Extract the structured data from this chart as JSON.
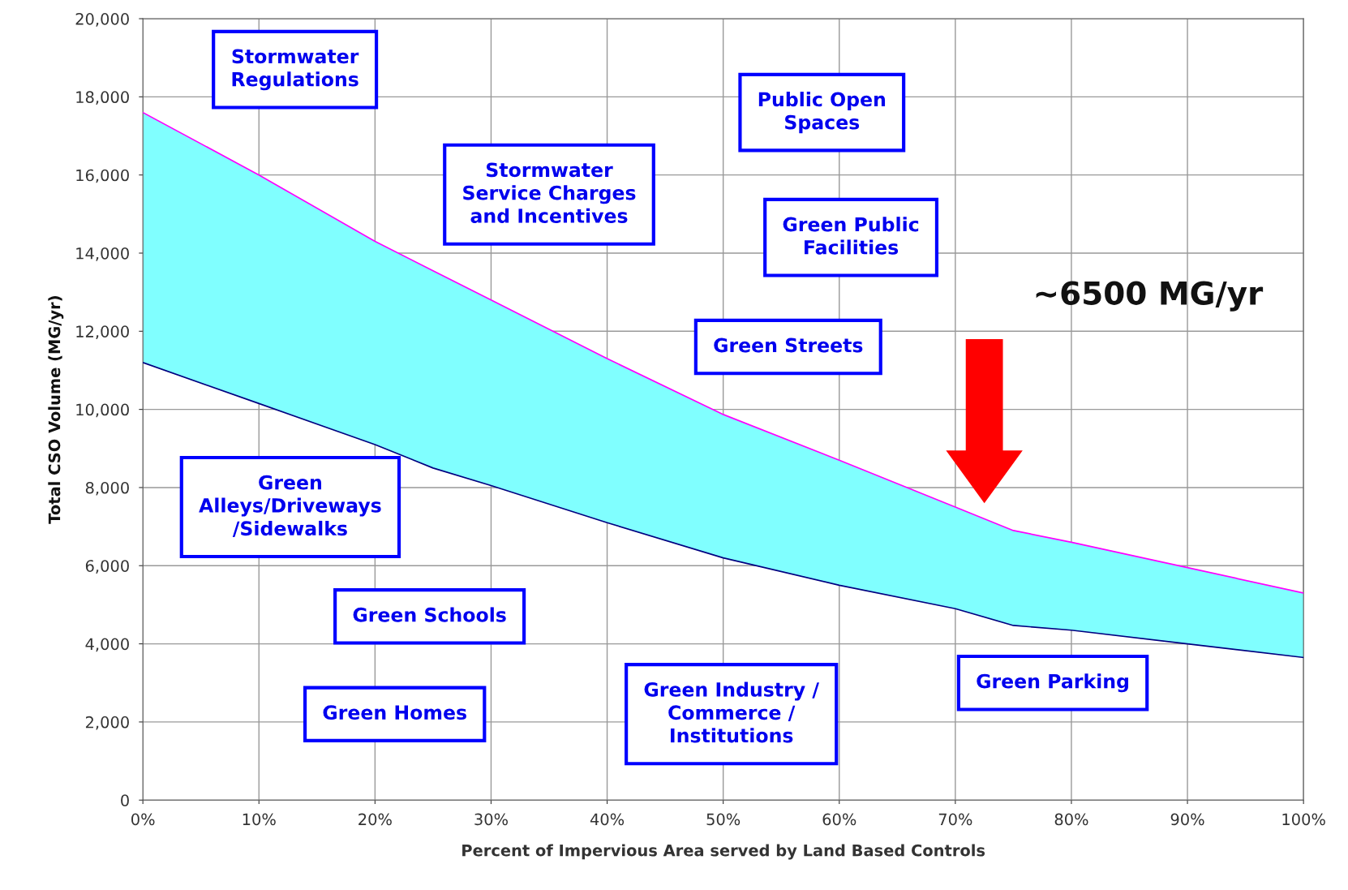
{
  "chart_data": {
    "type": "line",
    "xlabel": "Percent of Impervious Area served by Land Based Controls",
    "ylabel": "Total CSO Volume (MG/yr)",
    "x": [
      0,
      10,
      20,
      25,
      30,
      40,
      50,
      60,
      70,
      75,
      80,
      90,
      100
    ],
    "series": [
      {
        "type": "area",
        "color": "#80ffff",
        "values": [
          17600,
          16000,
          14300,
          13550,
          12800,
          11300,
          9870,
          8700,
          7500,
          6900,
          6600,
          5950,
          5300
        ]
      },
      {
        "color": "#000080",
        "values": [
          11200,
          10150,
          9100,
          8500,
          8050,
          7100,
          6200,
          5500,
          4900,
          4470,
          4350,
          4000,
          3650
        ]
      },
      {
        "color": "#ff00ff",
        "values": [
          17600,
          16000,
          14300,
          13550,
          12800,
          11300,
          9870,
          8700,
          7500,
          6900,
          6600,
          5950,
          5300
        ]
      }
    ],
    "xlim": [
      0,
      100
    ],
    "xticks": [
      {
        "value": 0,
        "label": "0%"
      },
      {
        "value": 10,
        "label": "10%"
      },
      {
        "value": 20,
        "label": "20%"
      },
      {
        "value": 30,
        "label": "30%"
      },
      {
        "value": 40,
        "label": "40%"
      },
      {
        "value": 50,
        "label": "50%"
      },
      {
        "value": 60,
        "label": "60%"
      },
      {
        "value": 70,
        "label": "70%"
      },
      {
        "value": 80,
        "label": "80%"
      },
      {
        "value": 90,
        "label": "90%"
      },
      {
        "value": 100,
        "label": "100%"
      }
    ],
    "ylim": [
      0,
      20000
    ],
    "yticks": [
      {
        "value": 0,
        "label": "0"
      },
      {
        "value": 2000,
        "label": "2,000"
      },
      {
        "value": 4000,
        "label": "4,000"
      },
      {
        "value": 6000,
        "label": "6,000"
      },
      {
        "value": 8000,
        "label": "8,000"
      },
      {
        "value": 10000,
        "label": "10,000"
      },
      {
        "value": 12000,
        "label": "12,000"
      },
      {
        "value": 14000,
        "label": "14,000"
      },
      {
        "value": 16000,
        "label": "16,000"
      },
      {
        "value": 18000,
        "label": "18,000"
      },
      {
        "value": 20000,
        "label": "20,000"
      }
    ],
    "grid": true,
    "marker": "none",
    "line_style": "solid",
    "annotations": [
      "Stormwater\nRegulations",
      "Public Open\nSpaces",
      "Stormwater\nService Charges\nand Incentives",
      "Green Public\nFacilities",
      "Green Streets",
      "Green\nAlleys/Driveways\n/Sidewalks",
      "Green Schools",
      "Green Homes",
      "Green Industry /\nCommerce /\nInstitutions",
      "Green Parking",
      "~6500 MG/yr"
    ]
  }
}
